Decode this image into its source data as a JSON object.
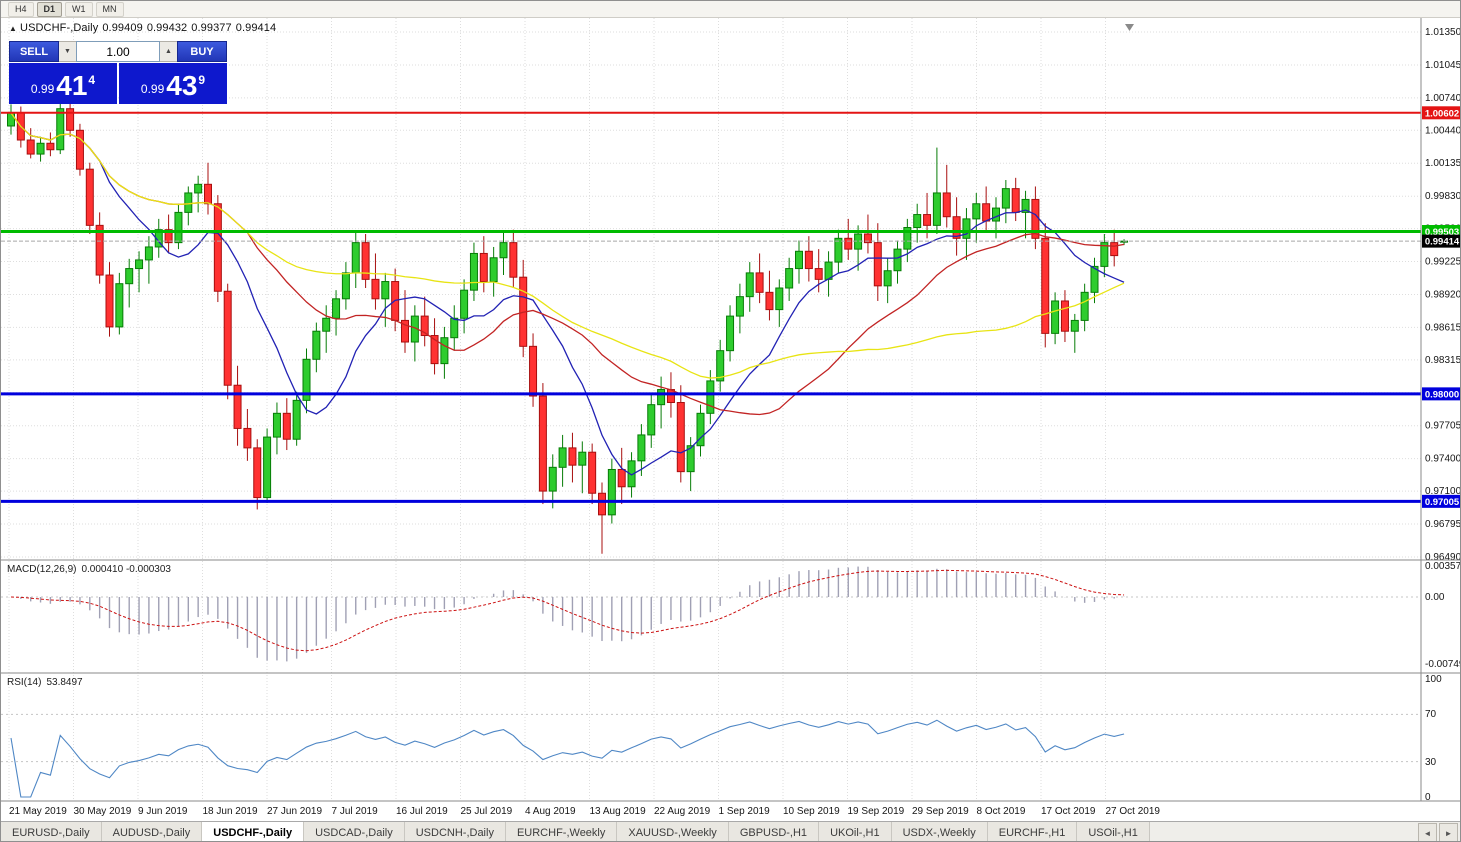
{
  "toolbar": {
    "timeframes": [
      "H4",
      "D1",
      "W1",
      "MN"
    ],
    "active": "D1"
  },
  "chart_header": {
    "symbol": "USDCHF-,Daily",
    "open": "0.99409",
    "high": "0.99432",
    "low": "0.99377",
    "close": "0.99414"
  },
  "icons": {
    "symbol_marker": "▲",
    "volume_decrease": "▼",
    "volume_increase": "▲",
    "tab_scroll_left": "◄",
    "tab_scroll_right": "►"
  },
  "trade_panel": {
    "sell_label": "SELL",
    "buy_label": "BUY",
    "volume": "1.00",
    "sell_price": {
      "prefix": "0.99",
      "big": "41",
      "sup": "4"
    },
    "buy_price": {
      "prefix": "0.99",
      "big": "43",
      "sup": "9"
    }
  },
  "tabs": {
    "items": [
      "EURUSD-,Daily",
      "AUDUSD-,Daily",
      "USDCHF-,Daily",
      "USDCAD-,Daily",
      "USDCNH-,Daily",
      "EURCHF-,Weekly",
      "XAUUSD-,Weekly",
      "GBPUSD-,H1",
      "UKOil-,H1",
      "USDX-,Weekly",
      "EURCHF-,H1",
      "USOil-,H1"
    ],
    "active_index": 2
  },
  "chart_data": {
    "type": "candlestick",
    "symbol": "USDCHF",
    "timeframe": "Daily",
    "title": "USDCHF-,Daily",
    "ylim": [
      0.9649,
      1.0135
    ],
    "y_ticks": [
      "1.01350",
      "1.01045",
      "1.00740",
      "1.00440",
      "1.00135",
      "0.99830",
      "0.99530",
      "0.99225",
      "0.98920",
      "0.98615",
      "0.98315",
      "0.98010",
      "0.97705",
      "0.97400",
      "0.97100",
      "0.96795",
      "0.96490"
    ],
    "x_labels": [
      "21 May 2019",
      "30 May 2019",
      "9 Jun 2019",
      "18 Jun 2019",
      "27 Jun 2019",
      "7 Jul 2019",
      "16 Jul 2019",
      "25 Jul 2019",
      "4 Aug 2019",
      "13 Aug 2019",
      "22 Aug 2019",
      "1 Sep 2019",
      "10 Sep 2019",
      "19 Sep 2019",
      "29 Sep 2019",
      "8 Oct 2019",
      "17 Oct 2019",
      "27 Oct 2019"
    ],
    "colors": {
      "bull": "#2ecc2e",
      "bear": "#ff3232",
      "bull_border": "#067c06",
      "bear_border": "#a80f0f"
    },
    "moving_averages": [
      {
        "period": 10,
        "color": "#2222b4"
      },
      {
        "period": 25,
        "color": "#c22424"
      },
      {
        "period": 50,
        "color": "#e8e414"
      }
    ],
    "hlines": [
      {
        "price": 1.00602,
        "label": "1.00602",
        "color": "#e41414",
        "width": 2
      },
      {
        "price": 0.99503,
        "label": "0.99503",
        "color": "#00bb00",
        "width": 3
      },
      {
        "price": 0.98,
        "label": "0.98000",
        "color": "#0000dd",
        "width": 3
      },
      {
        "price": 0.97005,
        "label": "0.97005",
        "color": "#0000dd",
        "width": 3
      }
    ],
    "current_price": {
      "price": 0.99414,
      "label": "0.99414",
      "badge_color": "#000000"
    },
    "indicators": {
      "macd": {
        "label": "MACD(12,26,9)",
        "values": "0.000410 -0.000303",
        "fast": 12,
        "slow": 26,
        "signal": 9,
        "axis": [
          "0.003574",
          "0.00",
          "-0.00749"
        ],
        "range": {
          "max": 0.0036,
          "min": -0.0075
        },
        "hist_color": "#a0a0b4",
        "signal_color": "#cc1111"
      },
      "rsi": {
        "label": "RSI(14)",
        "value": "53.8497",
        "period": 14,
        "axis": [
          "100",
          "70",
          "30",
          "0"
        ],
        "levels": [
          70,
          30
        ],
        "line_color": "#4f87c5"
      }
    },
    "ohlc": [
      [
        1.0048,
        1.0068,
        1.004,
        1.006
      ],
      [
        1.006,
        1.0066,
        1.0028,
        1.0035
      ],
      [
        1.0035,
        1.0046,
        1.0018,
        1.0022
      ],
      [
        1.0022,
        1.0038,
        1.0015,
        1.0032
      ],
      [
        1.0032,
        1.0042,
        1.002,
        1.0026
      ],
      [
        1.0026,
        1.0072,
        1.0022,
        1.0064
      ],
      [
        1.0064,
        1.007,
        1.0038,
        1.0044
      ],
      [
        1.0044,
        1.005,
        1.0002,
        1.0008
      ],
      [
        1.0008,
        1.0014,
        0.9948,
        0.9956
      ],
      [
        0.9956,
        0.9968,
        0.9902,
        0.991
      ],
      [
        0.991,
        0.9922,
        0.9853,
        0.9862
      ],
      [
        0.9862,
        0.9912,
        0.9855,
        0.9902
      ],
      [
        0.9902,
        0.9925,
        0.988,
        0.9916
      ],
      [
        0.9916,
        0.9932,
        0.9894,
        0.9924
      ],
      [
        0.9924,
        0.9946,
        0.9902,
        0.9936
      ],
      [
        0.9936,
        0.9962,
        0.9926,
        0.9952
      ],
      [
        0.9952,
        0.9966,
        0.993,
        0.994
      ],
      [
        0.994,
        0.9976,
        0.9934,
        0.9968
      ],
      [
        0.9968,
        0.9992,
        0.9956,
        0.9986
      ],
      [
        0.9986,
        1.0002,
        0.9968,
        0.9994
      ],
      [
        0.9994,
        1.0014,
        0.9966,
        0.9976
      ],
      [
        0.9976,
        0.9984,
        0.9885,
        0.9895
      ],
      [
        0.9895,
        0.9902,
        0.9795,
        0.9808
      ],
      [
        0.9808,
        0.9826,
        0.9752,
        0.9768
      ],
      [
        0.9768,
        0.9786,
        0.9738,
        0.975
      ],
      [
        0.975,
        0.9758,
        0.9693,
        0.9704
      ],
      [
        0.9704,
        0.9768,
        0.9699,
        0.976
      ],
      [
        0.976,
        0.9792,
        0.9744,
        0.9782
      ],
      [
        0.9782,
        0.9796,
        0.9748,
        0.9758
      ],
      [
        0.9758,
        0.9802,
        0.9752,
        0.9794
      ],
      [
        0.9794,
        0.9842,
        0.9782,
        0.9832
      ],
      [
        0.9832,
        0.9866,
        0.982,
        0.9858
      ],
      [
        0.9858,
        0.9882,
        0.9838,
        0.987
      ],
      [
        0.987,
        0.9896,
        0.9854,
        0.9888
      ],
      [
        0.9888,
        0.9922,
        0.9878,
        0.9912
      ],
      [
        0.9912,
        0.995,
        0.9898,
        0.994
      ],
      [
        0.994,
        0.9948,
        0.9898,
        0.9906
      ],
      [
        0.9906,
        0.993,
        0.9878,
        0.9888
      ],
      [
        0.9888,
        0.9912,
        0.9862,
        0.9904
      ],
      [
        0.9904,
        0.9916,
        0.9858,
        0.9868
      ],
      [
        0.9868,
        0.9896,
        0.9838,
        0.9848
      ],
      [
        0.9848,
        0.9882,
        0.983,
        0.9872
      ],
      [
        0.9872,
        0.989,
        0.9844,
        0.9854
      ],
      [
        0.9854,
        0.987,
        0.9818,
        0.9828
      ],
      [
        0.9828,
        0.9862,
        0.9814,
        0.9852
      ],
      [
        0.9852,
        0.9882,
        0.984,
        0.987
      ],
      [
        0.987,
        0.9906,
        0.9856,
        0.9896
      ],
      [
        0.9896,
        0.994,
        0.9886,
        0.993
      ],
      [
        0.993,
        0.9946,
        0.9894,
        0.9904
      ],
      [
        0.9904,
        0.9936,
        0.989,
        0.9926
      ],
      [
        0.9926,
        0.995,
        0.991,
        0.994
      ],
      [
        0.994,
        0.9952,
        0.9898,
        0.9908
      ],
      [
        0.9908,
        0.9924,
        0.9834,
        0.9844
      ],
      [
        0.9844,
        0.9856,
        0.9788,
        0.9798
      ],
      [
        0.9798,
        0.981,
        0.9698,
        0.971
      ],
      [
        0.971,
        0.9744,
        0.9694,
        0.9732
      ],
      [
        0.9732,
        0.9762,
        0.9714,
        0.975
      ],
      [
        0.975,
        0.9764,
        0.9718,
        0.9734
      ],
      [
        0.9734,
        0.9756,
        0.9708,
        0.9746
      ],
      [
        0.9746,
        0.9754,
        0.9698,
        0.9708
      ],
      [
        0.9708,
        0.9718,
        0.9652,
        0.9688
      ],
      [
        0.9688,
        0.974,
        0.968,
        0.973
      ],
      [
        0.973,
        0.975,
        0.9698,
        0.9714
      ],
      [
        0.9714,
        0.9746,
        0.9704,
        0.9738
      ],
      [
        0.9738,
        0.9772,
        0.9724,
        0.9762
      ],
      [
        0.9762,
        0.98,
        0.975,
        0.979
      ],
      [
        0.979,
        0.9816,
        0.9768,
        0.9804
      ],
      [
        0.9804,
        0.982,
        0.9778,
        0.9792
      ],
      [
        0.9792,
        0.9808,
        0.9718,
        0.9728
      ],
      [
        0.9728,
        0.976,
        0.971,
        0.9752
      ],
      [
        0.9752,
        0.979,
        0.9742,
        0.9782
      ],
      [
        0.9782,
        0.9822,
        0.9772,
        0.9812
      ],
      [
        0.9812,
        0.985,
        0.9802,
        0.984
      ],
      [
        0.984,
        0.9882,
        0.983,
        0.9872
      ],
      [
        0.9872,
        0.9902,
        0.9856,
        0.989
      ],
      [
        0.989,
        0.9922,
        0.9876,
        0.9912
      ],
      [
        0.9912,
        0.993,
        0.9884,
        0.9894
      ],
      [
        0.9894,
        0.9914,
        0.9868,
        0.9878
      ],
      [
        0.9878,
        0.9906,
        0.9862,
        0.9898
      ],
      [
        0.9898,
        0.9926,
        0.9886,
        0.9916
      ],
      [
        0.9916,
        0.9942,
        0.9902,
        0.9932
      ],
      [
        0.9932,
        0.9946,
        0.9904,
        0.9916
      ],
      [
        0.9916,
        0.9934,
        0.9894,
        0.9906
      ],
      [
        0.9906,
        0.9932,
        0.989,
        0.9922
      ],
      [
        0.9922,
        0.9952,
        0.9912,
        0.9944
      ],
      [
        0.9944,
        0.9962,
        0.9924,
        0.9934
      ],
      [
        0.9934,
        0.9956,
        0.9914,
        0.9948
      ],
      [
        0.9948,
        0.9966,
        0.993,
        0.994
      ],
      [
        0.994,
        0.9958,
        0.9886,
        0.99
      ],
      [
        0.99,
        0.9926,
        0.9884,
        0.9914
      ],
      [
        0.9914,
        0.9942,
        0.9902,
        0.9934
      ],
      [
        0.9934,
        0.9962,
        0.9922,
        0.9954
      ],
      [
        0.9954,
        0.9976,
        0.994,
        0.9966
      ],
      [
        0.9966,
        0.9986,
        0.9944,
        0.9956
      ],
      [
        0.9956,
        1.0028,
        0.9948,
        0.9986
      ],
      [
        0.9986,
        1.0012,
        0.9954,
        0.9964
      ],
      [
        0.9964,
        0.9982,
        0.9928,
        0.9944
      ],
      [
        0.9944,
        0.9972,
        0.9924,
        0.9962
      ],
      [
        0.9962,
        0.9986,
        0.994,
        0.9976
      ],
      [
        0.9976,
        0.9992,
        0.995,
        0.996
      ],
      [
        0.996,
        0.9982,
        0.9944,
        0.9972
      ],
      [
        0.9972,
        0.9998,
        0.9958,
        0.999
      ],
      [
        0.999,
        1.0,
        0.996,
        0.9968
      ],
      [
        0.9968,
        0.9988,
        0.9944,
        0.998
      ],
      [
        0.998,
        0.9992,
        0.9934,
        0.9944
      ],
      [
        0.9944,
        0.9958,
        0.9843,
        0.9856
      ],
      [
        0.9856,
        0.9894,
        0.9846,
        0.9886
      ],
      [
        0.9886,
        0.9896,
        0.9848,
        0.9858
      ],
      [
        0.9858,
        0.9874,
        0.9838,
        0.9868
      ],
      [
        0.9868,
        0.9902,
        0.9858,
        0.9894
      ],
      [
        0.9894,
        0.9926,
        0.9884,
        0.9918
      ],
      [
        0.9918,
        0.9948,
        0.9908,
        0.994
      ],
      [
        0.994,
        0.9952,
        0.9918,
        0.9928
      ],
      [
        0.99409,
        0.99432,
        0.99377,
        0.99414
      ]
    ]
  }
}
